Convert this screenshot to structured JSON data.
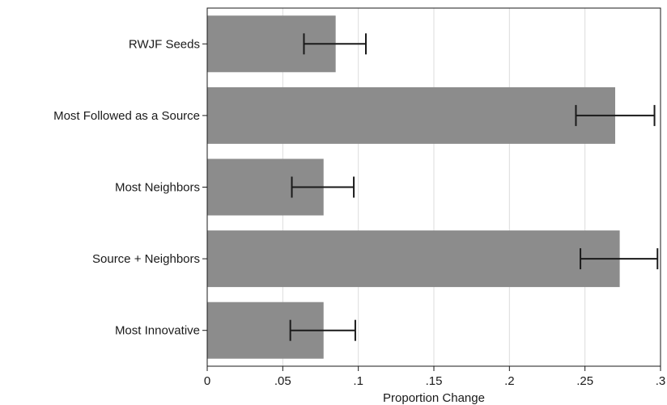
{
  "chart_data": {
    "type": "bar",
    "orientation": "horizontal",
    "title": "",
    "xlabel": "Proportion Change",
    "ylabel": "",
    "xlim": [
      0,
      0.3
    ],
    "x_ticks": [
      0,
      0.05,
      0.1,
      0.15,
      0.2,
      0.25,
      0.3
    ],
    "x_tick_labels": [
      "0",
      ".05",
      ".1",
      ".15",
      ".2",
      ".25",
      ".3"
    ],
    "grid": true,
    "categories": [
      "RWJF Seeds",
      "Most Followed as a Source",
      "Most Neighbors",
      "Source + Neighbors",
      "Most Innovative"
    ],
    "values": [
      0.085,
      0.27,
      0.077,
      0.273,
      0.077
    ],
    "error_low": [
      0.064,
      0.244,
      0.056,
      0.247,
      0.055
    ],
    "error_high": [
      0.105,
      0.296,
      0.097,
      0.298,
      0.098
    ],
    "colors": {
      "bar": "#8c8c8c",
      "error_bar": "#1a1a1a",
      "grid": "#dcdcdc",
      "axis": "#1a1a1a"
    }
  }
}
